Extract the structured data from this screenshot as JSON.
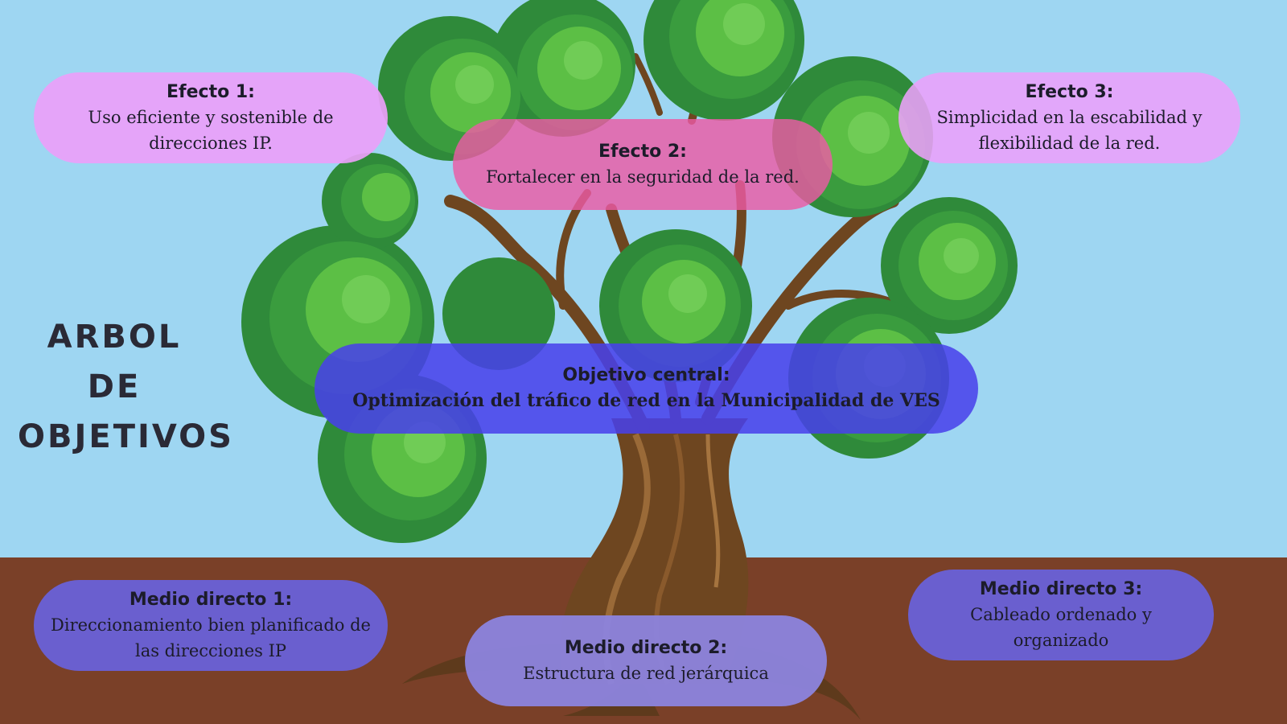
{
  "title": {
    "line1": "ARBOL DE",
    "line2": "OBJETIVOS"
  },
  "effects": [
    {
      "heading": "Efecto 1:",
      "text": "Uso eficiente y sostenible de direcciones IP."
    },
    {
      "heading": "Efecto 2:",
      "text": "Fortalecer en la seguridad de la red."
    },
    {
      "heading": "Efecto 3:",
      "text": "Simplicidad en la escabilidad y flexibilidad de la red."
    }
  ],
  "central": {
    "heading": "Objetivo central:",
    "text": "Optimización del tráfico de red en la Municipalidad de VES"
  },
  "means": [
    {
      "heading": "Medio directo 1:",
      "text": "Direccionamiento bien planificado de las direcciones IP"
    },
    {
      "heading": "Medio directo 2:",
      "text": "Estructura de red jerárquica"
    },
    {
      "heading": "Medio directo 3:",
      "text": "Cableado ordenado y organizado"
    }
  ],
  "colors": {
    "sky": "#9ed6f2",
    "soil": "#7a4028",
    "effect_pink": "#e8a2f6",
    "effect_magenta": "#e95aa6",
    "central_blue": "#4d45e8",
    "means_purple": "#6a5fcf",
    "means_lavender": "#8c84de"
  }
}
